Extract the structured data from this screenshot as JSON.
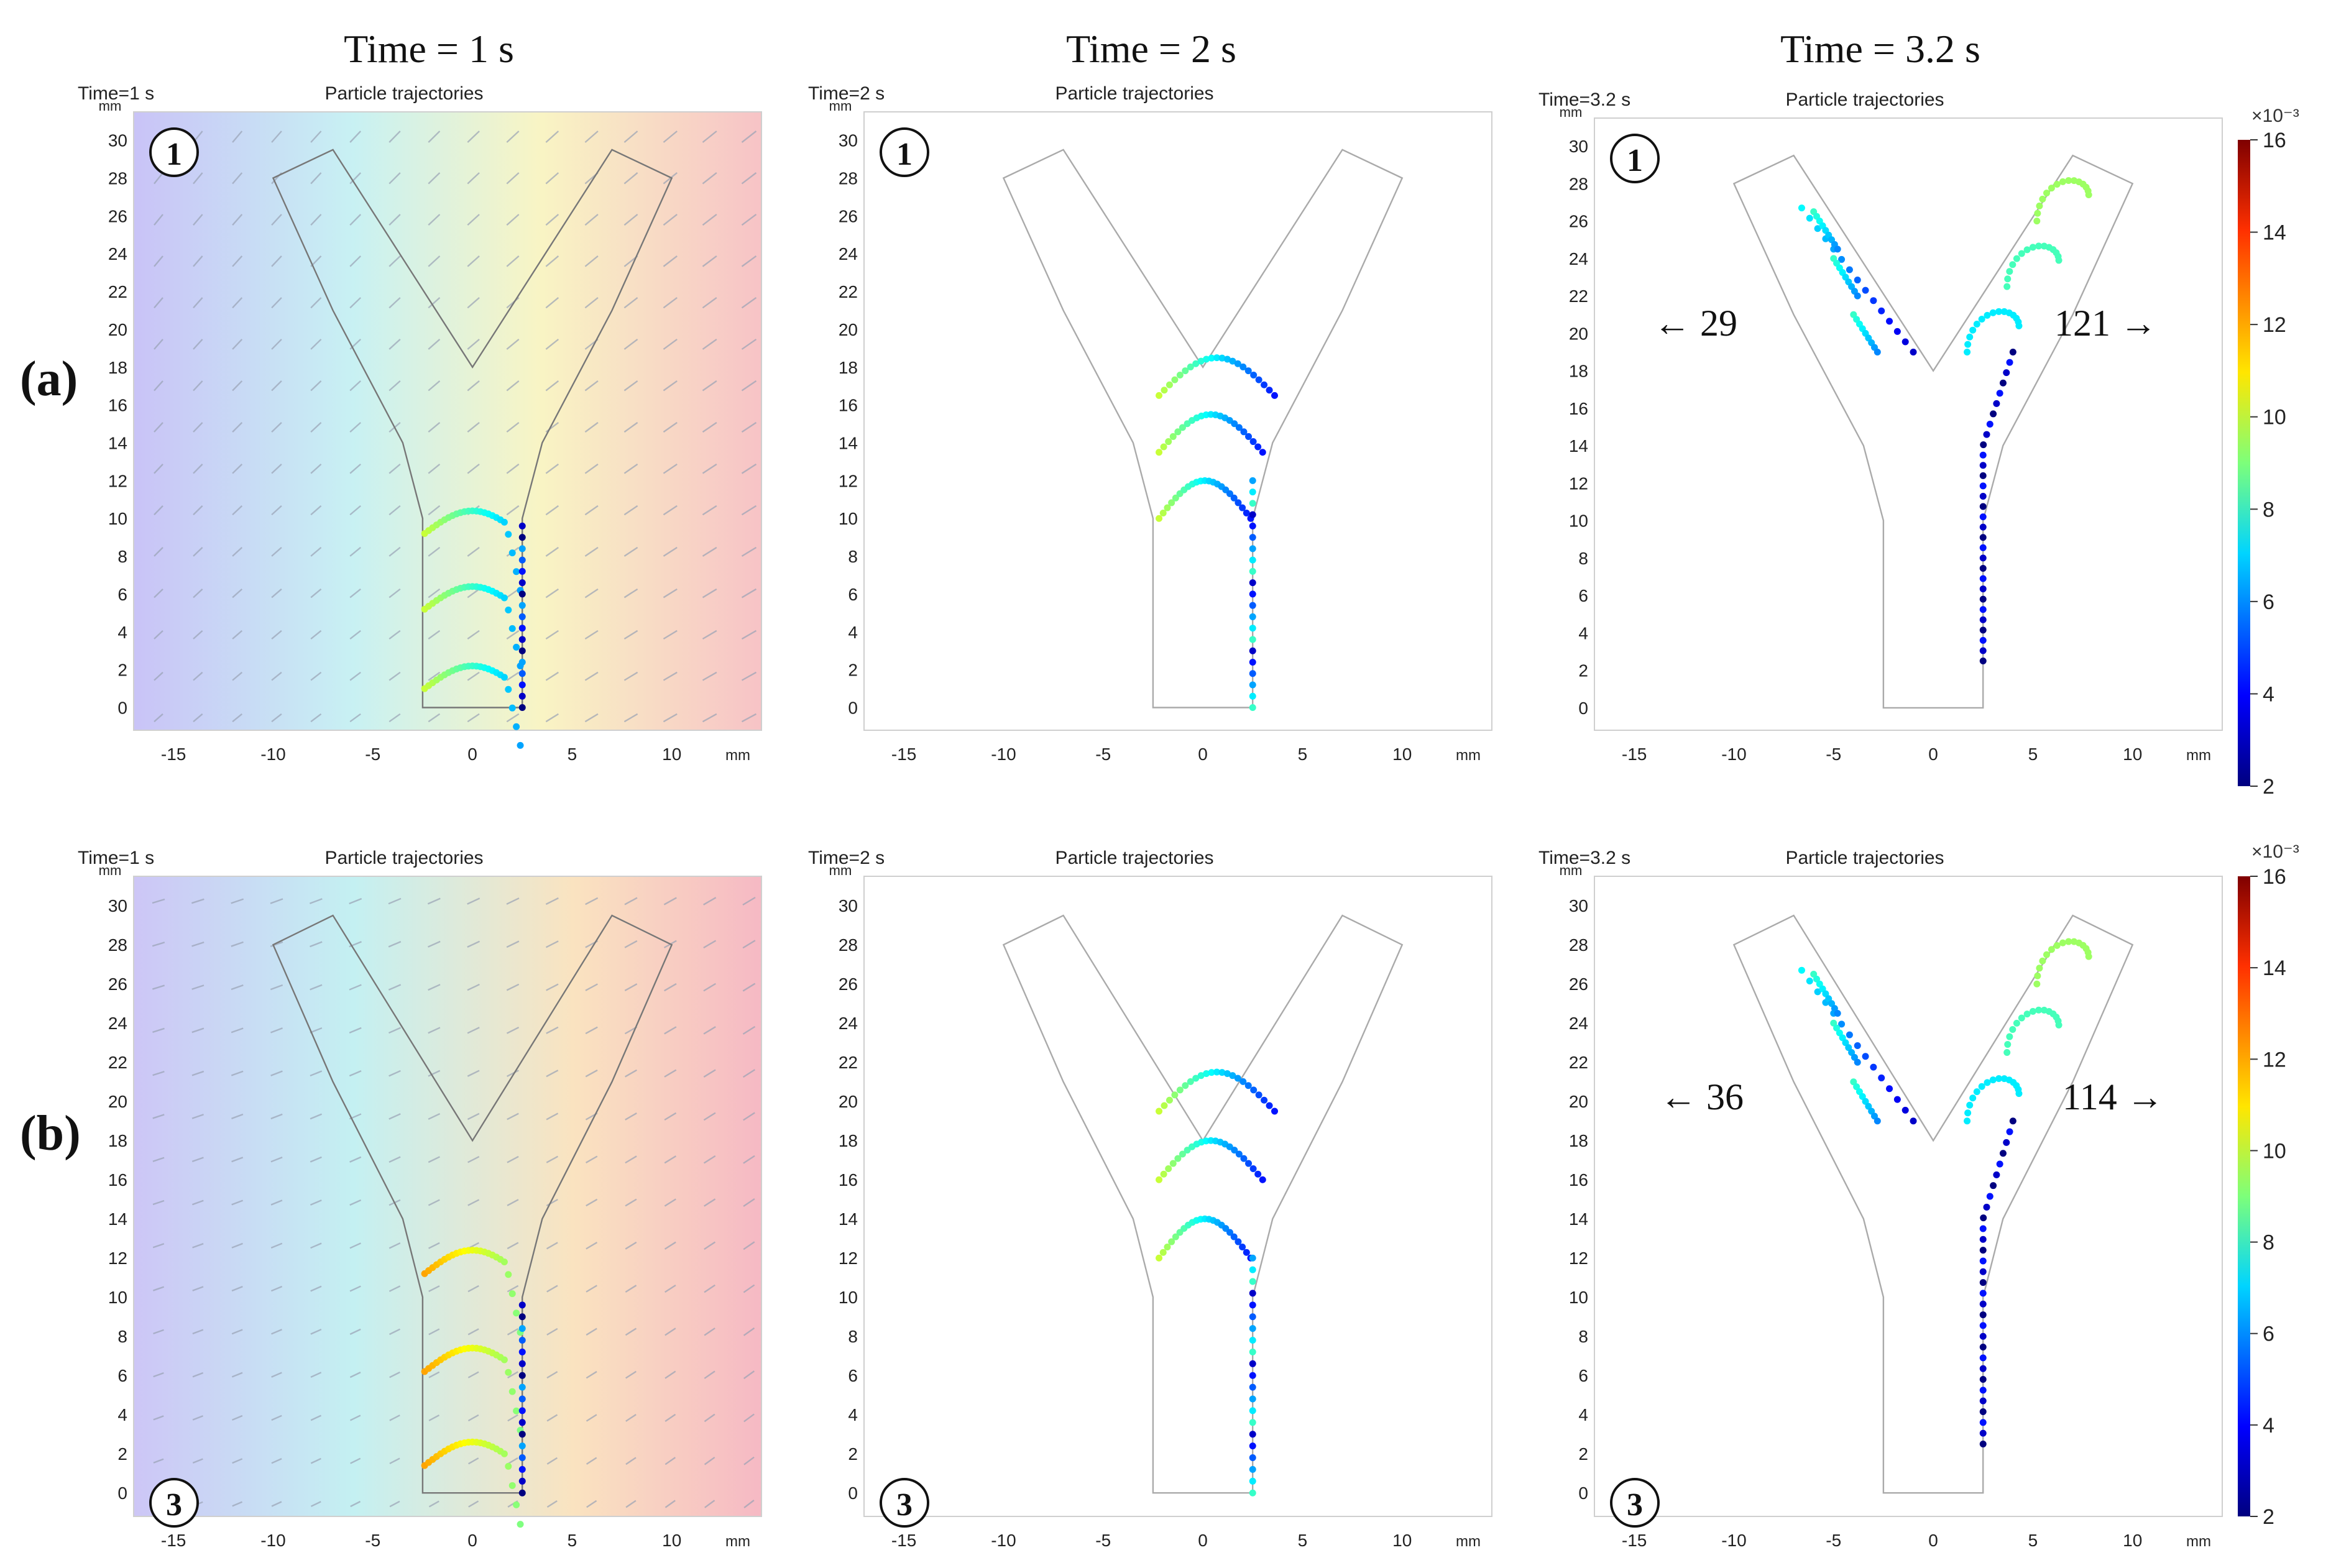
{
  "columns": [
    "Time = 1 s",
    "Time = 2 s",
    "Time = 3.2 s"
  ],
  "rows": [
    {
      "label": "(a)",
      "marker": "①"
    },
    {
      "label": "(b)",
      "marker": "③"
    }
  ],
  "panel_title": "Particle trajectories",
  "panels": [
    {
      "time_label": "Time=1 s"
    },
    {
      "time_label": "Time=2 s"
    },
    {
      "time_label": "Time=3.2 s"
    },
    {
      "time_label": "Time=1 s"
    },
    {
      "time_label": "Time=2 s"
    },
    {
      "time_label": "Time=3.2 s"
    }
  ],
  "axes": {
    "x_ticks": [
      "-15",
      "-10",
      "-5",
      "0",
      "5",
      "10"
    ],
    "y_ticks": [
      "0",
      "2",
      "4",
      "6",
      "8",
      "10",
      "12",
      "14",
      "16",
      "18",
      "20",
      "22",
      "24",
      "26",
      "28",
      "30"
    ],
    "unit": "mm"
  },
  "counts": {
    "a": {
      "left": "29",
      "right": "121"
    },
    "b": {
      "left": "36",
      "right": "114"
    }
  },
  "colorbar": {
    "scale": "×10⁻³",
    "ticks": [
      "2",
      "4",
      "6",
      "8",
      "10",
      "12",
      "14",
      "16"
    ]
  },
  "arrow_left": "←",
  "arrow_right": "→"
}
